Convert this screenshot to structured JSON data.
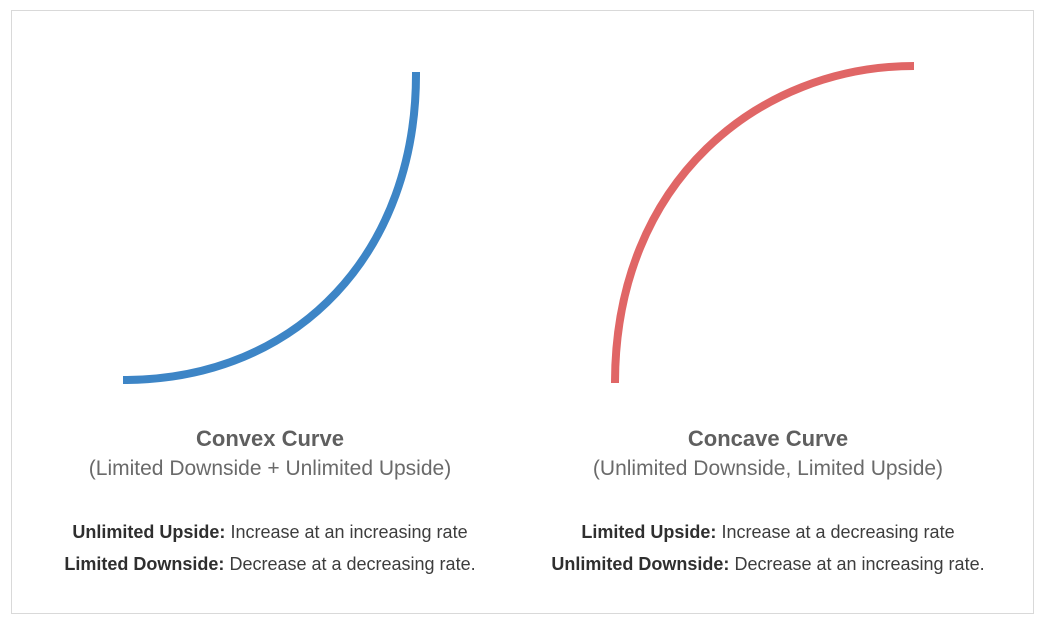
{
  "colors": {
    "convex_curve": "#3d85c6",
    "concave_curve": "#e06666",
    "frame_border": "#d9d9d9"
  },
  "convex": {
    "title": "Convex Curve",
    "subtitle": "(Limited Downside + Unlimited Upside)",
    "lines": [
      {
        "label": "Unlimited Upside:",
        "text": " Increase at an increasing rate"
      },
      {
        "label": "Limited Downside:",
        "text": " Decrease at a decreasing rate."
      }
    ]
  },
  "concave": {
    "title": "Concave Curve",
    "subtitle": "(Unlimited Downside, Limited Upside)",
    "lines": [
      {
        "label": "Limited Upside:",
        "text": " Increase at a decreasing rate"
      },
      {
        "label": "Unlimited Downside:",
        "text": " Decrease at an increasing rate."
      }
    ]
  }
}
